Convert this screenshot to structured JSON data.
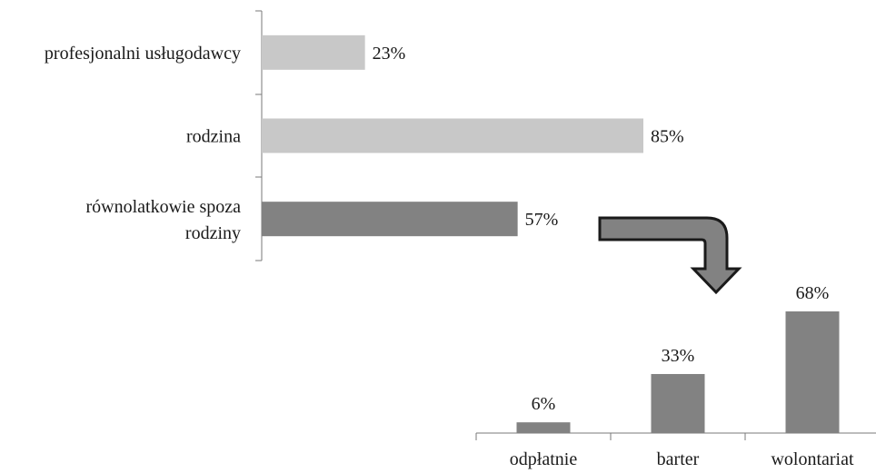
{
  "chart_data": [
    {
      "type": "bar",
      "orientation": "horizontal",
      "categories": [
        "profesjonalni usługodawcy",
        "rodzina",
        "równolatkowie spoza rodziny"
      ],
      "category_lines": [
        [
          "profesjonalni usługodawcy"
        ],
        [
          "rodzina"
        ],
        [
          "równolatkowie spoza",
          "rodziny"
        ]
      ],
      "values": [
        23,
        85,
        57
      ],
      "value_labels": [
        "23%",
        "85%",
        "57%"
      ],
      "bar_colors": [
        "#c8c8c8",
        "#c8c8c8",
        "#828282"
      ],
      "unit": "%",
      "xlim": [
        0,
        100
      ],
      "grid": false,
      "legend": "none"
    },
    {
      "type": "bar",
      "orientation": "vertical",
      "categories": [
        "odpłatnie",
        "barter",
        "wolontariat"
      ],
      "values": [
        6,
        33,
        68
      ],
      "value_labels": [
        "6%",
        "33%",
        "68%"
      ],
      "bar_colors": [
        "#828282",
        "#828282",
        "#828282"
      ],
      "unit": "%",
      "ylim": [
        0,
        100
      ],
      "grid": false,
      "legend": "none"
    }
  ],
  "annotations": {
    "arrow": {
      "fill": "#828282",
      "stroke": "#1a1a1a",
      "meaning": "links the 57% bar to the breakdown chart"
    }
  }
}
